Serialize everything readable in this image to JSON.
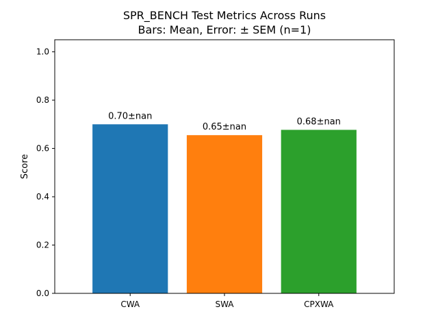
{
  "chart_data": {
    "type": "bar",
    "title": "SPR_BENCH Test Metrics Across Runs",
    "subtitle": "Bars: Mean, Error: ± SEM (n=1)",
    "xlabel": "",
    "ylabel": "Score",
    "categories": [
      "CWA",
      "SWA",
      "CPXWA"
    ],
    "values": [
      0.7,
      0.655,
      0.677
    ],
    "data_labels": [
      "0.70±nan",
      "0.65±nan",
      "0.68±nan"
    ],
    "ylim": [
      0,
      1.05
    ],
    "yticks": [
      "0.0",
      "0.2",
      "0.4",
      "0.6",
      "0.8",
      "1.0"
    ],
    "colors": [
      "#1f77b4",
      "#ff7f0e",
      "#2ca02c"
    ],
    "grid": false,
    "legend": "none"
  }
}
